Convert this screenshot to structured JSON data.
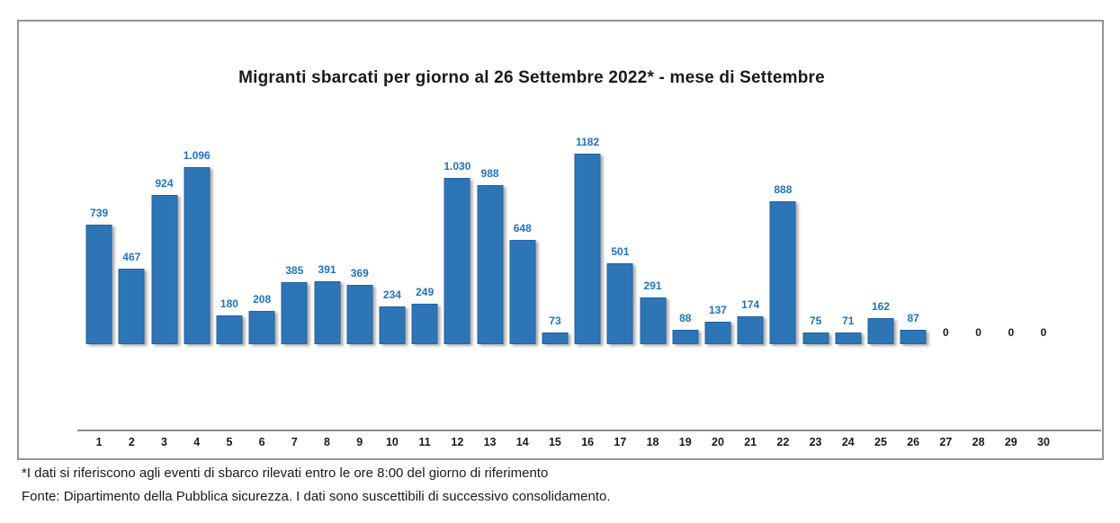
{
  "title": "Migranti sbarcati per giorno al 26 Settembre 2022* - mese di Settembre",
  "footnotes": {
    "line1": "*I dati si riferiscono agli eventi di sbarco rilevati entro le ore 8:00 del giorno di riferimento",
    "line2": "Fonte: Dipartimento della Pubblica sicurezza. I dati sono suscettibili di successivo consolidamento."
  },
  "colors": {
    "bar_fill": "#2E75B6",
    "bar_border": "#2262A0",
    "value_label_blue": "#1F72C1",
    "value_label_zero": "#1a1a1a",
    "axis_line": "#8c8c8c",
    "frame_border": "#949494",
    "text": "#1a1a1a"
  },
  "chart_data": {
    "type": "bar",
    "title": "Migranti sbarcati per giorno al 26 Settembre 2022* - mese di Settembre",
    "categories": [
      "1",
      "2",
      "3",
      "4",
      "5",
      "6",
      "7",
      "8",
      "9",
      "10",
      "11",
      "12",
      "13",
      "14",
      "15",
      "16",
      "17",
      "18",
      "19",
      "20",
      "21",
      "22",
      "23",
      "24",
      "25",
      "26",
      "27",
      "28",
      "29",
      "30"
    ],
    "values": [
      739,
      467,
      924,
      1096,
      180,
      208,
      385,
      391,
      369,
      234,
      249,
      1030,
      988,
      648,
      73,
      1182,
      501,
      291,
      88,
      137,
      174,
      888,
      75,
      71,
      162,
      87,
      0,
      0,
      0,
      0
    ],
    "value_labels": [
      "739",
      "467",
      "924",
      "1.096",
      "180",
      "208",
      "385",
      "391",
      "369",
      "234",
      "249",
      "1.030",
      "988",
      "648",
      "73",
      "1182",
      "501",
      "291",
      "88",
      "137",
      "174",
      "888",
      "75",
      "71",
      "162",
      "87",
      "0",
      "0",
      "0",
      "0"
    ],
    "xlabel": "",
    "ylabel": "",
    "ylim": [
      0,
      1200
    ],
    "grid": false,
    "legend": null,
    "data_labels_position": "outside-end"
  }
}
